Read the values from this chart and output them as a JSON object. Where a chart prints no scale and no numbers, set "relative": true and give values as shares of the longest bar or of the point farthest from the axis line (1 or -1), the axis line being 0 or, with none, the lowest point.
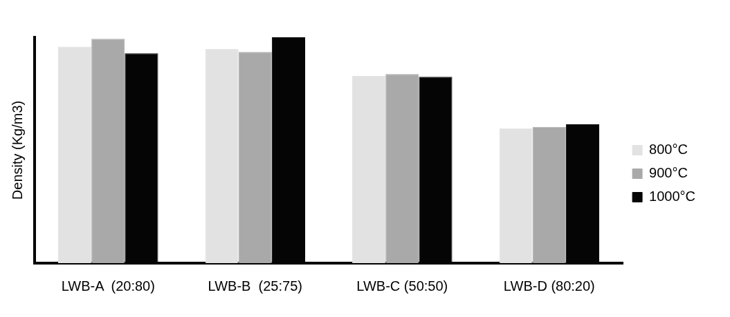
{
  "chart_data": {
    "type": "bar",
    "ylabel": "Density (Kg/m3)",
    "relative": true,
    "categories": [
      "LWB-A  (20:80)",
      "LWB-B  (25:75)",
      "LWB-C (50:50)",
      "LWB-D (80:20)"
    ],
    "series": [
      {
        "name": "800°C",
        "color": "#e2e2e2",
        "values": [
          0.959,
          0.949,
          0.829,
          0.597
        ]
      },
      {
        "name": "900°C",
        "color": "#a9a9a9",
        "values": [
          0.993,
          0.935,
          0.837,
          0.603
        ]
      },
      {
        "name": "1000°C",
        "color": "#050505",
        "values": [
          0.929,
          1,
          0.825,
          0.615
        ]
      }
    ],
    "legend": "right",
    "grid": false
  }
}
